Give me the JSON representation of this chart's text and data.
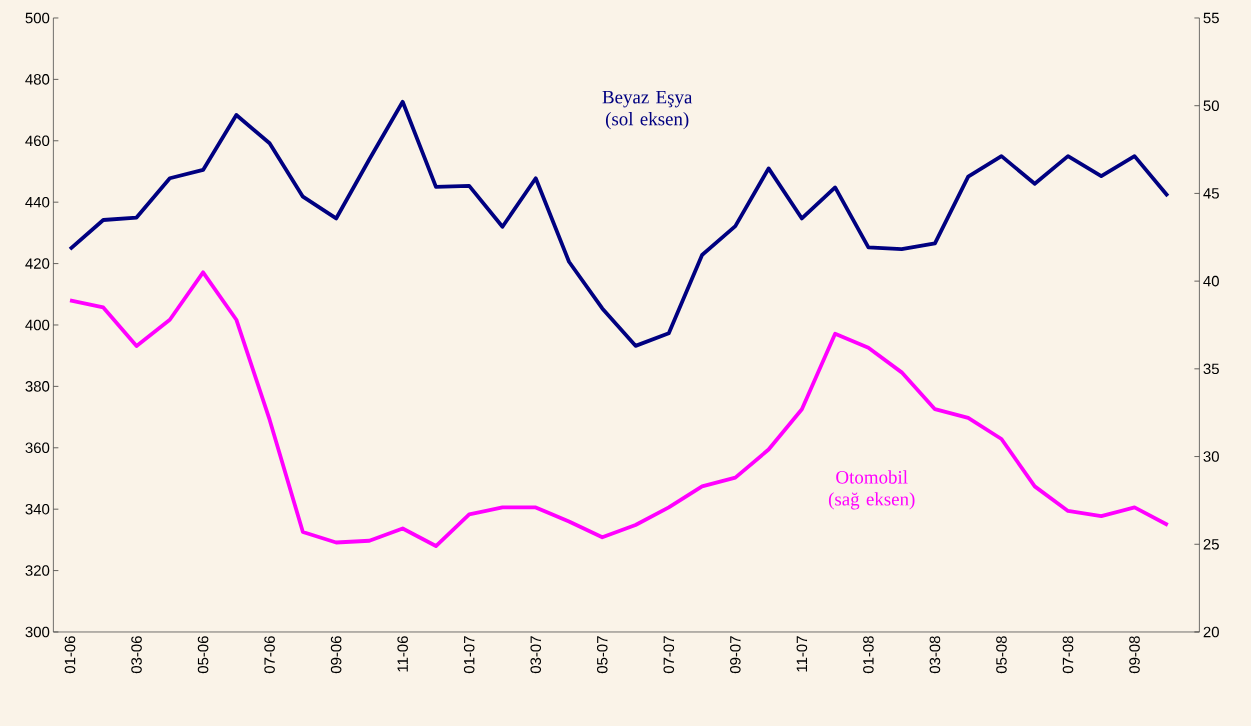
{
  "chart_data": {
    "type": "line",
    "categories": [
      "01-06",
      null,
      "03-06",
      null,
      "05-06",
      null,
      "07-06",
      null,
      "09-06",
      null,
      "11-06",
      null,
      "01-07",
      null,
      "03-07",
      null,
      "05-07",
      null,
      "07-07",
      null,
      "09-07",
      null,
      "11-07",
      null,
      "01-08",
      null,
      "03-08",
      null,
      "05-08",
      null,
      "07-08",
      null,
      "09-08",
      null
    ],
    "ylim": [
      300,
      500
    ],
    "yticks": [
      300,
      320,
      340,
      360,
      380,
      400,
      420,
      440,
      460,
      480,
      500
    ],
    "y2lim": [
      20,
      55
    ],
    "y2ticks": [
      20,
      25,
      30,
      35,
      40,
      45,
      50,
      55
    ],
    "series": [
      {
        "name": "Beyaz Eşya (sol eksen)",
        "color": "#000080",
        "values": [
          424.7,
          434.2,
          435,
          447.8,
          450.5,
          468.4,
          459.2,
          441.8,
          434.7,
          454,
          472.7,
          445,
          445.3,
          432,
          447.8,
          420.6,
          405.4,
          393.2,
          397.3,
          422.8,
          432.2,
          451,
          434.7,
          444.8,
          425.3,
          424.7,
          426.6,
          448.3,
          455,
          446,
          455,
          448.5,
          455,
          442
        ]
      },
      {
        "name": "Otomobil (sağ eksen)",
        "color": "#ff00ff",
        "axis": "y2",
        "values": [
          38.9,
          38.5,
          36.3,
          37.8,
          40.5,
          37.8,
          32.1,
          25.7,
          25.1,
          25.2,
          25.9,
          24.9,
          26.7,
          27.1,
          27.1,
          26.3,
          25.4,
          26.1,
          27.1,
          28.3,
          28.8,
          30.4,
          32.7,
          37.0,
          36.2,
          34.8,
          32.7,
          32.2,
          31.0,
          28.3,
          26.9,
          26.6,
          27.1,
          26.1
        ]
      }
    ]
  }
}
